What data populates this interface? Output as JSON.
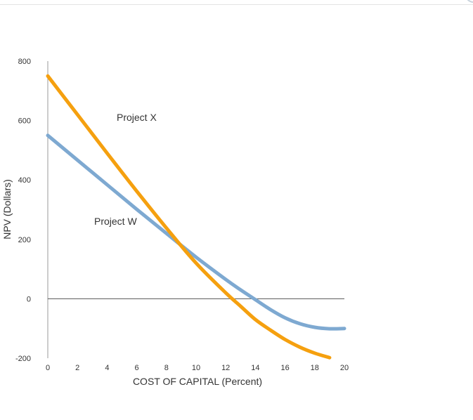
{
  "chart_data": {
    "type": "line",
    "xlabel": "COST OF CAPITAL (Percent)",
    "ylabel": "NPV (Dollars)",
    "xlim": [
      0,
      20
    ],
    "ylim": [
      -200,
      800
    ],
    "x_ticks": [
      "0",
      "2",
      "4",
      "6",
      "8",
      "10",
      "12",
      "14",
      "16",
      "18",
      "20"
    ],
    "y_ticks": [
      "-200",
      "0",
      "200",
      "400",
      "600",
      "800"
    ],
    "grid": false,
    "series": [
      {
        "name": "Project X",
        "color": "#f5a00f",
        "x": [
          0,
          2,
          4,
          6,
          8,
          10,
          12,
          13,
          14,
          15,
          16,
          17,
          18,
          19
        ],
        "y": [
          750,
          620,
          490,
          362,
          238,
          120,
          20,
          -25,
          -70,
          -105,
          -137,
          -163,
          -183,
          -198
        ]
      },
      {
        "name": "Project W",
        "color": "#7ea9d1",
        "x": [
          0,
          2,
          4,
          6,
          8,
          10,
          12,
          13,
          14,
          15,
          16,
          17,
          18,
          19,
          20
        ],
        "y": [
          550,
          467,
          384,
          301,
          220,
          140,
          65,
          30,
          -3,
          -36,
          -64,
          -84,
          -96,
          -101,
          -100
        ]
      }
    ],
    "zero_line": true
  }
}
